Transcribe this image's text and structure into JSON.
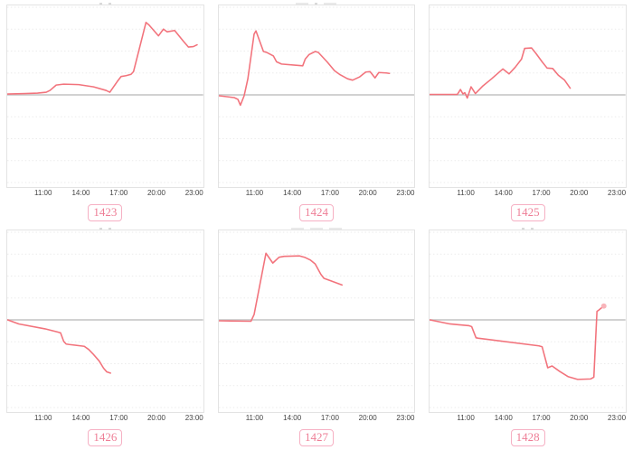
{
  "colors": {
    "line": "#f2737c",
    "baseline": "#cbcbcb",
    "grid": "#ebebeb",
    "panel_border": "#e3e3e3",
    "tick_text": "#444444",
    "badge_text": "#ee7e96",
    "badge_border": "#f6b0c3",
    "end_dot": "#f8b4ba"
  },
  "chart_data": {
    "type": "line",
    "description": "2x3 grid of red time-series sparkline panels over a gray zero baseline; no y-axis labels visible; each panel tagged with an ID badge below",
    "x_axis": {
      "tick_labels": [
        "11:00",
        "14:00",
        "17:00",
        "20:00",
        "23:00"
      ],
      "tick_hours": [
        11,
        14,
        17,
        20,
        23
      ],
      "range_hours": [
        8,
        24
      ]
    },
    "y_axis": {
      "labels_visible": false,
      "baseline": 0,
      "range_units": [
        -103,
        100
      ]
    },
    "grid": "faint dotted horizontal gridlines",
    "charts": [
      {
        "label": "1423",
        "end_dot": false,
        "points": [
          [
            8.1,
            1
          ],
          [
            9.5,
            1.5
          ],
          [
            10.5,
            2
          ],
          [
            11.2,
            3
          ],
          [
            11.5,
            5
          ],
          [
            12.0,
            11
          ],
          [
            12.6,
            12
          ],
          [
            13.8,
            11.5
          ],
          [
            15.0,
            9
          ],
          [
            16.0,
            5
          ],
          [
            16.3,
            3
          ],
          [
            16.9,
            15
          ],
          [
            17.2,
            20.5
          ],
          [
            17.6,
            21.5
          ],
          [
            18.0,
            23
          ],
          [
            18.2,
            26
          ],
          [
            19.2,
            81
          ],
          [
            19.45,
            78
          ],
          [
            20.2,
            66
          ],
          [
            20.6,
            73.5
          ],
          [
            20.9,
            70.5
          ],
          [
            21.5,
            72
          ],
          [
            22.2,
            60
          ],
          [
            22.6,
            53.5
          ],
          [
            23.0,
            54
          ],
          [
            23.3,
            56
          ]
        ]
      },
      {
        "label": "1424",
        "end_dot": false,
        "points": [
          [
            8.1,
            -1
          ],
          [
            9.3,
            -3
          ],
          [
            9.6,
            -5
          ],
          [
            9.8,
            -11.5
          ],
          [
            10.1,
            -1
          ],
          [
            10.4,
            18
          ],
          [
            10.9,
            68
          ],
          [
            11.05,
            71.5
          ],
          [
            11.65,
            48.5
          ],
          [
            11.9,
            47.5
          ],
          [
            12.45,
            43.5
          ],
          [
            12.7,
            37
          ],
          [
            13.1,
            34.5
          ],
          [
            14.8,
            32.5
          ],
          [
            15.0,
            40
          ],
          [
            15.3,
            45
          ],
          [
            15.8,
            48.5
          ],
          [
            16.05,
            47.5
          ],
          [
            16.75,
            37
          ],
          [
            17.35,
            27
          ],
          [
            17.8,
            22.5
          ],
          [
            18.4,
            18
          ],
          [
            18.8,
            16.5
          ],
          [
            19.35,
            20
          ],
          [
            19.85,
            25.5
          ],
          [
            20.2,
            26
          ],
          [
            20.6,
            19
          ],
          [
            20.9,
            25
          ],
          [
            21.5,
            24.5
          ],
          [
            21.75,
            24
          ]
        ]
      },
      {
        "label": "1425",
        "end_dot": false,
        "points": [
          [
            8.1,
            0.5
          ],
          [
            10.3,
            0.5
          ],
          [
            10.55,
            6
          ],
          [
            10.75,
            1
          ],
          [
            10.9,
            2.5
          ],
          [
            11.1,
            -3.5
          ],
          [
            11.4,
            9
          ],
          [
            11.75,
            1.5
          ],
          [
            12.35,
            10
          ],
          [
            13.05,
            18
          ],
          [
            13.95,
            29
          ],
          [
            14.45,
            23.5
          ],
          [
            14.95,
            31
          ],
          [
            15.45,
            40
          ],
          [
            15.7,
            52
          ],
          [
            16.25,
            52.5
          ],
          [
            16.6,
            46.5
          ],
          [
            17.1,
            37
          ],
          [
            17.5,
            30
          ],
          [
            17.95,
            29.5
          ],
          [
            18.4,
            22
          ],
          [
            18.9,
            16.5
          ],
          [
            19.35,
            7.5
          ]
        ]
      },
      {
        "label": "1426",
        "end_dot": false,
        "points": [
          [
            8.0,
            0
          ],
          [
            9.0,
            -4.5
          ],
          [
            11.1,
            -10
          ],
          [
            12.1,
            -13.5
          ],
          [
            12.35,
            -14.5
          ],
          [
            12.6,
            -24
          ],
          [
            12.8,
            -27
          ],
          [
            13.05,
            -27.5
          ],
          [
            14.25,
            -29.5
          ],
          [
            14.6,
            -33
          ],
          [
            14.95,
            -38
          ],
          [
            15.45,
            -46
          ],
          [
            15.8,
            -54
          ],
          [
            16.05,
            -58
          ],
          [
            16.35,
            -59.5
          ]
        ]
      },
      {
        "label": "1427",
        "end_dot": false,
        "points": [
          [
            8.1,
            -1
          ],
          [
            10.65,
            -1.5
          ],
          [
            10.9,
            6
          ],
          [
            11.85,
            74.5
          ],
          [
            12.4,
            63.5
          ],
          [
            12.9,
            70
          ],
          [
            13.3,
            71
          ],
          [
            14.55,
            71.5
          ],
          [
            14.95,
            70
          ],
          [
            15.4,
            67
          ],
          [
            15.8,
            62.5
          ],
          [
            16.25,
            51
          ],
          [
            16.5,
            46.5
          ],
          [
            17.1,
            43.5
          ],
          [
            17.95,
            39
          ]
        ]
      },
      {
        "label": "1428",
        "end_dot": true,
        "points": [
          [
            8.05,
            0
          ],
          [
            9.7,
            -4.5
          ],
          [
            11.25,
            -6.5
          ],
          [
            11.45,
            -7.5
          ],
          [
            11.8,
            -20
          ],
          [
            12.0,
            -20.5
          ],
          [
            16.85,
            -29
          ],
          [
            17.1,
            -30
          ],
          [
            17.55,
            -53.5
          ],
          [
            17.9,
            -51.5
          ],
          [
            18.5,
            -57.5
          ],
          [
            19.2,
            -63.5
          ],
          [
            19.95,
            -66.5
          ],
          [
            21.0,
            -66
          ],
          [
            21.25,
            -64
          ],
          [
            21.5,
            9.5
          ],
          [
            21.65,
            11
          ],
          [
            22.05,
            15.5
          ]
        ]
      }
    ]
  }
}
